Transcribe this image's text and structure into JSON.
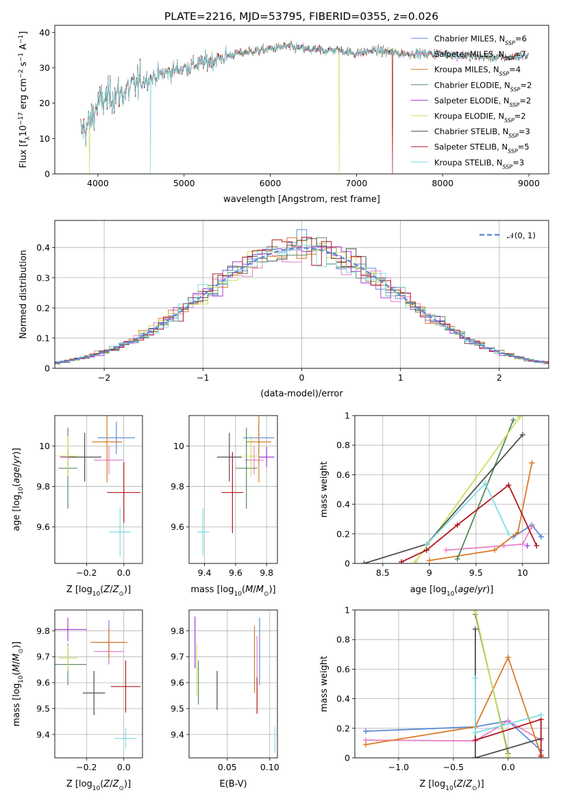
{
  "figure": {
    "title": "PLATE=2216, MJD=53795, FIBERID=0355, z=0.026"
  },
  "colors": {
    "Chabrier MILES": "#5b8bd8",
    "Salpeter MILES": "#e87fc6",
    "Kroupa MILES": "#d97a26",
    "Chabrier ELODIE": "#55875a",
    "Salpeter ELODIE": "#a33ad4",
    "Kroupa ELODIE": "#c8e05a",
    "Chabrier STELIB": "#4d4d4d",
    "Salpeter STELIB": "#b0151c",
    "Kroupa STELIB": "#7fdce4"
  },
  "chart_data": [
    {
      "id": "spectrum",
      "type": "line",
      "title": "PLATE=2216, MJD=53795, FIBERID=0355, z=0.026",
      "xlabel": "wavelength [Angstrom, rest frame]",
      "ylabel_parts": [
        "Flux [f",
        "λ",
        "10",
        "−17",
        " erg cm",
        "−2",
        " s",
        "−1",
        " A",
        "−1",
        "]"
      ],
      "xlim": [
        3500,
        9230
      ],
      "ylim": [
        0,
        42
      ],
      "xticks": [
        4000,
        5000,
        6000,
        7000,
        8000,
        9000
      ],
      "yticks": [
        0,
        10,
        20,
        30,
        40
      ],
      "legend_position": "top-right",
      "series": [
        {
          "name": "Chabrier MILES",
          "sub": "SSP",
          "n": 6
        },
        {
          "name": "Salpeter MILES",
          "sub": "SSP",
          "n": 7
        },
        {
          "name": "Kroupa MILES",
          "sub": "SSP",
          "n": 4
        },
        {
          "name": "Chabrier ELODIE",
          "sub": "SSP",
          "n": 2
        },
        {
          "name": "Salpeter ELODIE",
          "sub": "SSP",
          "n": 2
        },
        {
          "name": "Kroupa ELODIE",
          "sub": "SSP",
          "n": 2
        },
        {
          "name": "Chabrier STELIB",
          "sub": "SSP",
          "n": 3
        },
        {
          "name": "Salpeter STELIB",
          "sub": "SSP",
          "n": 5
        },
        {
          "name": "Kroupa STELIB",
          "sub": "SSP",
          "n": 3
        }
      ],
      "continuum": [
        [
          3800,
          12
        ],
        [
          3900,
          14
        ],
        [
          4000,
          20
        ],
        [
          4150,
          22
        ],
        [
          4300,
          23
        ],
        [
          4500,
          26
        ],
        [
          4700,
          28
        ],
        [
          5000,
          30
        ],
        [
          5300,
          32
        ],
        [
          5600,
          34
        ],
        [
          5900,
          35
        ],
        [
          6200,
          36
        ],
        [
          6500,
          35
        ],
        [
          6800,
          35
        ],
        [
          7000,
          34
        ],
        [
          7200,
          35
        ],
        [
          7500,
          34
        ],
        [
          7800,
          34
        ],
        [
          8000,
          34
        ],
        [
          8400,
          33
        ],
        [
          8800,
          33
        ],
        [
          9000,
          33.5
        ]
      ],
      "dropouts": [
        {
          "series": "Kroupa ELODIE",
          "x": 3900
        },
        {
          "series": "Kroupa STELIB",
          "x": 4610
        },
        {
          "series": "Kroupa ELODIE",
          "x": 6800
        },
        {
          "series": "Salpeter STELIB",
          "x": 7420
        }
      ]
    },
    {
      "id": "residuals",
      "type": "histogram",
      "xlabel": "(data-model)/error",
      "ylabel": "Normed distribution",
      "xlim": [
        -2.5,
        2.5
      ],
      "ylim": [
        0,
        0.49
      ],
      "xticks": [
        -2,
        -1,
        0,
        1,
        2
      ],
      "xtick_labels": [
        "−2",
        "−1",
        "0",
        "1",
        "2"
      ],
      "yticks": [
        0.0,
        0.1,
        0.2,
        0.3,
        0.4
      ],
      "grid": true,
      "legend_position": "top-right",
      "reference_curve": {
        "label": "𝒩(0, 1)",
        "mean": 0,
        "sigma": 1
      },
      "bin_width": 0.1
    },
    {
      "id": "z-vs-age",
      "type": "scatter",
      "xlabel": "Z [log10(Z/Z⊙)]",
      "ylabel": "age  [log10(age/yr)]",
      "xlim": [
        -0.37,
        0.1
      ],
      "ylim": [
        9.42,
        10.15
      ],
      "xticks": [
        -0.2,
        0.0
      ],
      "xtick_labels": [
        "−0.2",
        "0.0"
      ],
      "yticks": [
        9.6,
        9.8,
        10.0
      ],
      "grid": true,
      "points": [
        {
          "series": "Chabrier MILES",
          "x": -0.04,
          "y": 10.04,
          "xerr": 0.1,
          "yerr": 0.08
        },
        {
          "series": "Salpeter MILES",
          "x": -0.08,
          "y": 9.93,
          "xerr": 0.08,
          "yerr": 0.07
        },
        {
          "series": "Kroupa MILES",
          "x": -0.09,
          "y": 10.02,
          "xerr": 0.08,
          "yerr": 0.2
        },
        {
          "series": "Chabrier ELODIE",
          "x": -0.3,
          "y": 9.89,
          "xerr": 0.05,
          "yerr": 0.2
        },
        {
          "series": "Salpeter ELODIE",
          "x": -0.3,
          "y": 9.945,
          "xerr": 0.04,
          "yerr": 0.04
        },
        {
          "series": "Kroupa ELODIE",
          "x": -0.3,
          "y": 9.95,
          "xerr": 0.05,
          "yerr": 0.1
        },
        {
          "series": "Chabrier STELIB",
          "x": -0.21,
          "y": 9.945,
          "xerr": 0.09,
          "yerr": 0.12
        },
        {
          "series": "Salpeter STELIB",
          "x": 0.0,
          "y": 9.77,
          "xerr": 0.09,
          "yerr": 0.15
        },
        {
          "series": "Kroupa STELIB",
          "x": -0.02,
          "y": 9.575,
          "xerr": 0.06,
          "yerr": 0.12
        }
      ]
    },
    {
      "id": "mass-vs-age",
      "type": "scatter",
      "xlabel": "mass [log10(M/M⊙)]",
      "ylabel": "",
      "xlim": [
        9.3,
        9.87
      ],
      "ylim": [
        9.42,
        10.15
      ],
      "xticks": [
        9.4,
        9.6,
        9.8
      ],
      "yticks": [
        9.6,
        9.8,
        10.0
      ],
      "grid": true,
      "points": [
        {
          "series": "Chabrier MILES",
          "x": 9.75,
          "y": 10.04,
          "xerr": 0.1,
          "yerr": 0.08
        },
        {
          "series": "Salpeter MILES",
          "x": 9.72,
          "y": 9.93,
          "xerr": 0.06,
          "yerr": 0.07
        },
        {
          "series": "Kroupa MILES",
          "x": 9.75,
          "y": 10.02,
          "xerr": 0.08,
          "yerr": 0.2
        },
        {
          "series": "Chabrier ELODIE",
          "x": 9.67,
          "y": 9.89,
          "xerr": 0.07,
          "yerr": 0.2
        },
        {
          "series": "Salpeter ELODIE",
          "x": 9.8,
          "y": 9.945,
          "xerr": 0.05,
          "yerr": 0.05
        },
        {
          "series": "Kroupa ELODIE",
          "x": 9.7,
          "y": 9.95,
          "xerr": 0.05,
          "yerr": 0.1
        },
        {
          "series": "Chabrier STELIB",
          "x": 9.56,
          "y": 9.945,
          "xerr": 0.08,
          "yerr": 0.12
        },
        {
          "series": "Salpeter STELIB",
          "x": 9.58,
          "y": 9.77,
          "xerr": 0.07,
          "yerr": 0.2
        },
        {
          "series": "Kroupa STELIB",
          "x": 9.39,
          "y": 9.575,
          "xerr": 0.04,
          "yerr": 0.12
        }
      ]
    },
    {
      "id": "age-weights",
      "type": "line",
      "xlabel": "age  [log10(age/yr)]",
      "ylabel": "mass weight",
      "xlim": [
        8.2,
        10.28
      ],
      "ylim": [
        0,
        1.0
      ],
      "xticks": [
        8.5,
        9.0,
        9.5,
        10.0
      ],
      "yticks": [
        0.0,
        0.2,
        0.4,
        0.6,
        0.8,
        1.0
      ],
      "grid": true,
      "series": [
        {
          "name": "Chabrier MILES",
          "x": [
            9.9,
            10.1,
            10.2
          ],
          "y": [
            0.18,
            0.26,
            0.18
          ]
        },
        {
          "name": "Salpeter MILES",
          "x": [
            9.18,
            9.8,
            10.0,
            10.1
          ],
          "y": [
            0.09,
            0.12,
            0.13,
            0.25
          ]
        },
        {
          "name": "Kroupa MILES",
          "x": [
            9.0,
            9.7,
            9.95,
            10.1
          ],
          "y": [
            0.02,
            0.09,
            0.21,
            0.68
          ]
        },
        {
          "name": "Chabrier ELODIE",
          "x": [
            9.3,
            9.9
          ],
          "y": [
            0.03,
            0.97
          ]
        },
        {
          "name": "Salpeter ELODIE",
          "x": [
            10.05
          ],
          "y": [
            0.12
          ]
        },
        {
          "name": "Kroupa ELODIE",
          "x": [
            8.85,
            9.97
          ],
          "y": [
            0.01,
            0.99
          ]
        },
        {
          "name": "Chabrier STELIB",
          "x": [
            8.3,
            8.97,
            10.0
          ],
          "y": [
            0.0,
            0.13,
            0.87
          ]
        },
        {
          "name": "Salpeter STELIB",
          "x": [
            8.7,
            8.97,
            9.3,
            9.85,
            10.15
          ],
          "y": [
            0.01,
            0.09,
            0.26,
            0.53,
            0.12
          ]
        },
        {
          "name": "Kroupa STELIB",
          "x": [
            8.97,
            9.6,
            9.85
          ],
          "y": [
            0.13,
            0.54,
            0.2
          ]
        }
      ]
    },
    {
      "id": "z-vs-mass",
      "type": "scatter",
      "xlabel": "Z [log10(Z/Z⊙)]",
      "ylabel": "mass [log10(M/M⊙)]",
      "xlim": [
        -0.37,
        0.1
      ],
      "ylim": [
        9.31,
        9.88
      ],
      "xticks": [
        -0.2,
        0.0
      ],
      "xtick_labels": [
        "−0.2",
        "0.0"
      ],
      "yticks": [
        9.4,
        9.5,
        9.6,
        9.7,
        9.8
      ],
      "grid": true,
      "points": [
        {
          "series": "Chabrier MILES",
          "x": -0.08,
          "y": 9.755,
          "xerr": 0.08,
          "yerr": 0.085
        },
        {
          "series": "Salpeter MILES",
          "x": -0.08,
          "y": 9.72,
          "xerr": 0.08,
          "yerr": 0.05
        },
        {
          "series": "Kroupa MILES",
          "x": -0.08,
          "y": 9.755,
          "xerr": 0.1,
          "yerr": 0.06
        },
        {
          "series": "Chabrier ELODIE",
          "x": -0.3,
          "y": 9.67,
          "xerr": 0.1,
          "yerr": 0.08
        },
        {
          "series": "Salpeter ELODIE",
          "x": -0.3,
          "y": 9.805,
          "xerr": 0.1,
          "yerr": 0.045
        },
        {
          "series": "Kroupa ELODIE",
          "x": -0.3,
          "y": 9.695,
          "xerr": 0.05,
          "yerr": 0.05
        },
        {
          "series": "Chabrier STELIB",
          "x": -0.16,
          "y": 9.56,
          "xerr": 0.06,
          "yerr": 0.085
        },
        {
          "series": "Salpeter STELIB",
          "x": 0.01,
          "y": 9.585,
          "xerr": 0.08,
          "yerr": 0.1
        },
        {
          "series": "Kroupa STELIB",
          "x": 0.01,
          "y": 9.385,
          "xerr": 0.06,
          "yerr": 0.04
        }
      ]
    },
    {
      "id": "ebv-vs-mass",
      "type": "scatter",
      "xlabel": "E(B-V)",
      "ylabel": "",
      "xlim": [
        0.005,
        0.109
      ],
      "ylim": [
        9.31,
        9.88
      ],
      "xticks": [
        0.05,
        0.1
      ],
      "xtick_labels": [
        "0.05",
        "0.10"
      ],
      "yticks": [
        9.4,
        9.5,
        9.6,
        9.7,
        9.8
      ],
      "grid": true,
      "points": [
        {
          "series": "Chabrier MILES",
          "x": 0.088,
          "y": 9.72,
          "xerr": 0,
          "yerr": 0.13
        },
        {
          "series": "Salpeter MILES",
          "x": 0.085,
          "y": 9.7,
          "xerr": 0,
          "yerr": 0.08
        },
        {
          "series": "Kroupa MILES",
          "x": 0.082,
          "y": 9.69,
          "xerr": 0,
          "yerr": 0.13
        },
        {
          "series": "Chabrier ELODIE",
          "x": 0.016,
          "y": 9.6,
          "xerr": 0,
          "yerr": 0.085
        },
        {
          "series": "Salpeter ELODIE",
          "x": 0.012,
          "y": 9.755,
          "xerr": 0,
          "yerr": 0.1
        },
        {
          "series": "Kroupa ELODIE",
          "x": 0.014,
          "y": 9.65,
          "xerr": 0,
          "yerr": 0.1
        },
        {
          "series": "Chabrier STELIB",
          "x": 0.038,
          "y": 9.57,
          "xerr": 0,
          "yerr": 0.075
        },
        {
          "series": "Salpeter STELIB",
          "x": 0.085,
          "y": 9.55,
          "xerr": 0,
          "yerr": 0.07
        },
        {
          "series": "Kroupa STELIB",
          "x": 0.106,
          "y": 9.38,
          "xerr": 0,
          "yerr": 0.05
        }
      ]
    },
    {
      "id": "z-weights",
      "type": "line",
      "xlabel": "Z [log10(Z/Z⊙)]",
      "ylabel": "mass weight",
      "xlim": [
        -1.4,
        0.37
      ],
      "ylim": [
        0,
        1.0
      ],
      "xticks": [
        -1.0,
        -0.5,
        0.0
      ],
      "xtick_labels": [
        "−1.0",
        "−0.5",
        "0.0"
      ],
      "yticks": [
        0.0,
        0.2,
        0.4,
        0.6,
        0.8,
        1.0
      ],
      "grid": true,
      "series": [
        {
          "name": "Chabrier MILES",
          "x": [
            -1.3,
            -0.3,
            0.0,
            0.3
          ],
          "y": [
            0.18,
            0.21,
            0.25,
            0.05
          ]
        },
        {
          "name": "Salpeter MILES",
          "x": [
            -1.3,
            -0.3,
            0.0,
            0.3
          ],
          "y": [
            0.12,
            0.115,
            0.25,
            0.12
          ]
        },
        {
          "name": "Kroupa MILES",
          "x": [
            -1.3,
            -0.3,
            0.0,
            0.3
          ],
          "y": [
            0.09,
            0.21,
            0.68,
            0.02
          ]
        },
        {
          "name": "Chabrier ELODIE",
          "x": [
            -0.3,
            0.0
          ],
          "y": [
            0.97,
            0.03
          ]
        },
        {
          "name": "Salpeter ELODIE",
          "x": [
            -0.3
          ],
          "y": [
            0.0
          ]
        },
        {
          "name": "Kroupa ELODIE",
          "x": [
            -0.3,
            0.0
          ],
          "y": [
            0.99,
            0.01
          ]
        },
        {
          "name": "Chabrier STELIB",
          "x": [
            -0.3,
            -0.3,
            0.3
          ],
          "y": [
            0.87,
            0.0,
            0.13
          ]
        },
        {
          "name": "Salpeter STELIB",
          "x": [
            -0.3,
            0.3,
            0.3
          ],
          "y": [
            0.12,
            0.26,
            0.01
          ]
        },
        {
          "name": "Kroupa STELIB",
          "x": [
            -0.3,
            -0.3,
            0.3
          ],
          "y": [
            0.54,
            0.17,
            0.29
          ]
        }
      ]
    }
  ]
}
